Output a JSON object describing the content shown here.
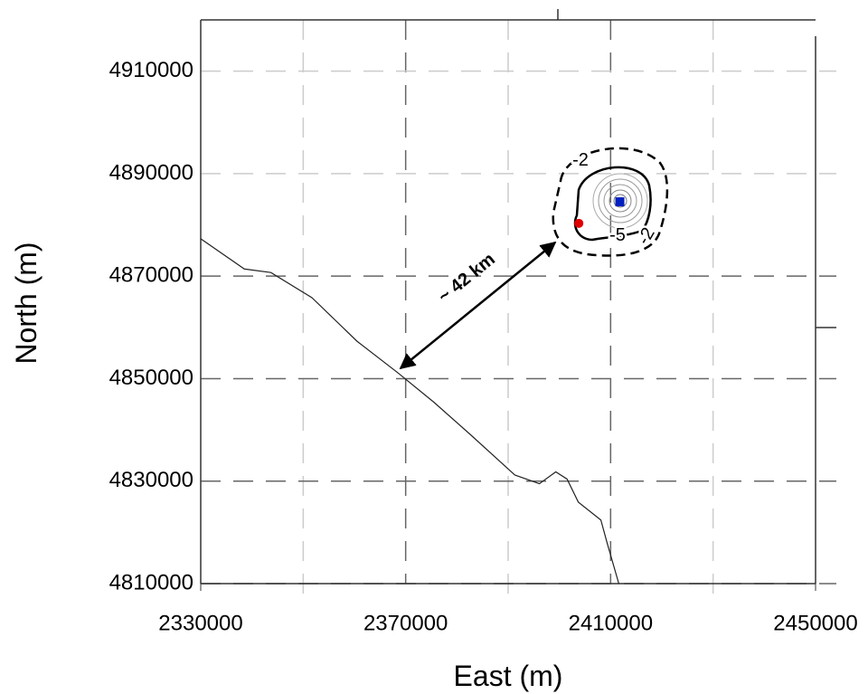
{
  "chart_data": {
    "type": "map",
    "xlabel": "East (m)",
    "ylabel": "North (m)",
    "xlim": [
      2330000,
      2450000
    ],
    "ylim": [
      4810000,
      4920000
    ],
    "xticks": [
      2330000,
      2370000,
      2410000,
      2450000
    ],
    "yticks": [
      4810000,
      4830000,
      4850000,
      4870000,
      4890000,
      4910000
    ],
    "x_minor_ticks": [
      2350000,
      2390000,
      2430000
    ],
    "grid": true,
    "coastline": {
      "color": "#222222",
      "x": [
        2330000,
        2338500,
        2343700,
        2351700,
        2360500,
        2368400,
        2375500,
        2382500,
        2391300,
        2396100,
        2399300,
        2401500,
        2403700,
        2408100,
        2409300,
        2411600
      ],
      "y": [
        4877300,
        4871400,
        4870700,
        4865800,
        4857300,
        4851200,
        4845400,
        4839200,
        4831200,
        4829500,
        4831800,
        4830400,
        4825900,
        4822400,
        4818000,
        4810000
      ]
    },
    "points": {
      "x": [
        2403800,
        2411800
      ],
      "y": [
        4880300,
        4884500
      ],
      "colors": [
        "#e00000",
        "#0020c0"
      ]
    },
    "annotations": [
      "~ 42 km",
      "-2",
      "-5",
      "-2"
    ]
  }
}
